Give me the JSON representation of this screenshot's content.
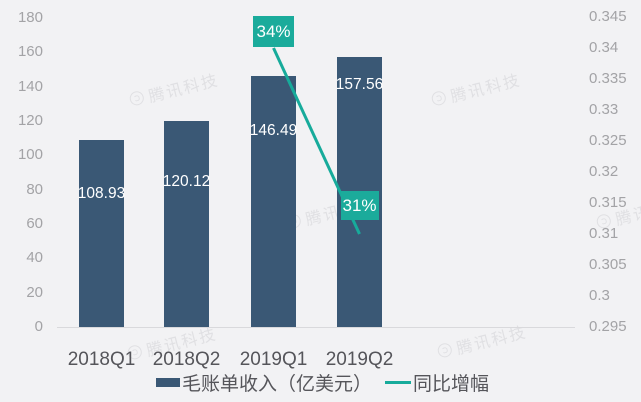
{
  "chart_data": {
    "type": "bar",
    "subtype": "bar-line-combo",
    "categories": [
      "2018Q1",
      "2018Q2",
      "2019Q1",
      "2019Q2"
    ],
    "series": [
      {
        "name": "毛账单收入（亿美元）",
        "type": "bar",
        "axis": "left",
        "values": [
          108.93,
          120.12,
          146.49,
          157.56
        ],
        "value_labels": [
          "108.93",
          "120.12",
          "146.49",
          "157.56"
        ]
      },
      {
        "name": "同比增幅",
        "type": "line",
        "axis": "right",
        "values": [
          null,
          null,
          0.34,
          0.31
        ],
        "point_labels": [
          null,
          null,
          "34%",
          "31%"
        ]
      }
    ],
    "title": "",
    "xlabel": "",
    "ylabel": "",
    "left_axis": {
      "min": 0,
      "max": 180,
      "step": 20,
      "ticks": [
        "180",
        "160",
        "140",
        "120",
        "100",
        "80",
        "60",
        "40",
        "20",
        "0"
      ]
    },
    "right_axis": {
      "min": 0.295,
      "max": 0.345,
      "step": 0.005,
      "ticks": [
        "0.345",
        "0.34",
        "0.335",
        "0.33",
        "0.325",
        "0.32",
        "0.315",
        "0.31",
        "0.305",
        "0.3",
        "0.295"
      ]
    },
    "grid": false,
    "legend_position": "bottom"
  },
  "legend": {
    "bar_label": "毛账单收入（亿美元）",
    "line_label": "同比增幅"
  },
  "watermark_text": "腾讯科技",
  "colors": {
    "bar": "#3a5875",
    "line": "#17ab9b",
    "annotation_bg": "#1bab9b",
    "annotation_text": "#ffffff",
    "value_label": "#ffffff",
    "tick_label": "#a3a3a6",
    "category_label": "#55555a",
    "axis_line": "#d9d9dc",
    "background": "#f2f2f4",
    "watermark": "#e0e0e3"
  }
}
